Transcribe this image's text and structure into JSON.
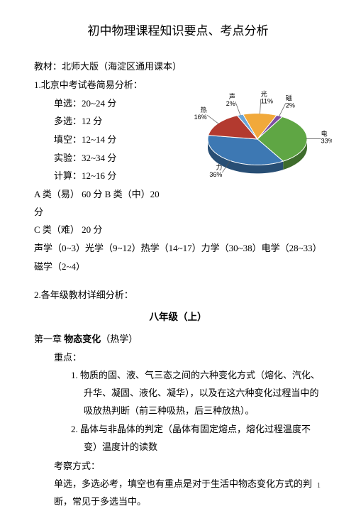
{
  "title": "初中物理课程知识要点、考点分析",
  "textbook_line": "教材：北师大版（海淀区通用课本）",
  "exam_analysis_heading": "1.北京中考试卷简易分析：",
  "exam_items": {
    "single": "单选：20~24 分",
    "multi": "多选：12 分",
    "blank": "填空：12~14 分",
    "exp": "实验：32~34 分",
    "calc": "计算：12~16 分"
  },
  "class_line1": "A 类（易） 60 分   B 类（中）20 分",
  "class_line2": "C 类（难） 20 分",
  "topic_line1": "声学（0~3）光学（9~12）热学（14~17）力学（30~38）电学（28~33）",
  "topic_line2": "磁学（2~4）",
  "section2_heading": "2.各年级教材详细分析：",
  "grade_title": "八年级（上）",
  "chapter_line_prefix": "第一章  ",
  "chapter_bold": "物态变化",
  "chapter_suffix": "（热学）",
  "keypoints_label": "重点：",
  "kp1": "1.  物质的固、液、气三态之间的六种变化方式（熔化、汽化、升华、凝固、液化、凝华），以及在这六种变化过程当中的吸放热判断（前三种吸热，后三种放热）。",
  "kp2": "2.  晶体与非晶体的判定（晶体有固定熔点，熔化过程温度不变）温度计的读数",
  "exam_method_label": "考察方式：",
  "exam_method_text": "单选，多选必考，填空也有重点是对于生活中物态变化方式的判断，常见于多选当中。",
  "page_number": "1",
  "chart": {
    "type": "pie-3d",
    "slices": [
      {
        "label": "电",
        "value": 33,
        "label_text": "电\n33%",
        "color": "#5fa644"
      },
      {
        "label": "力",
        "value": 36,
        "label_text": "力\n36%",
        "color": "#3d78b3"
      },
      {
        "label": "热",
        "value": 16,
        "label_text": "热\n16%",
        "color": "#b33a2f"
      },
      {
        "label": "声",
        "value": 2,
        "label_text": "声\n2%",
        "color": "#6aa5d8"
      },
      {
        "label": "光",
        "value": 11,
        "label_text": "光\n11%",
        "color": "#f1a93b"
      },
      {
        "label": "磁",
        "value": 2,
        "label_text": "磁\n2%",
        "color": "#7e4ea3"
      }
    ],
    "label_font_size": 9,
    "leader_color": "#555555",
    "background": "#ffffff",
    "start_angle_deg": 300,
    "tilt": 0.52
  }
}
